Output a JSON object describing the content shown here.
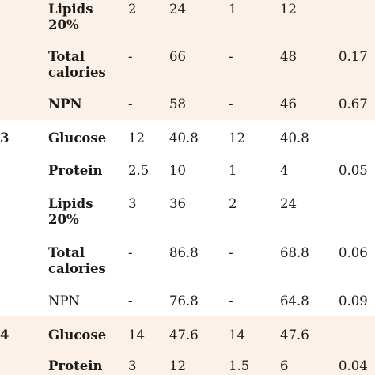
{
  "colors": {
    "band_peach": "#fcf1e8",
    "background": "#ffffff"
  },
  "rows": [
    {
      "group": "",
      "name1": "Lipids",
      "name2": "20%",
      "v1": "2",
      "v2": "24",
      "v3": "1",
      "v4": "12",
      "p": ""
    },
    {
      "group": "",
      "name1": "Total",
      "name2": "calories",
      "v1": "-",
      "v2": "66",
      "v3": "-",
      "v4": "48",
      "p": "0.17"
    },
    {
      "group": "",
      "name1": "NPN",
      "name2": "",
      "v1": "-",
      "v2": "58",
      "v3": "-",
      "v4": "46",
      "p": "0.67"
    },
    {
      "group": "3",
      "name1": "Glucose",
      "name2": "",
      "v1": "12",
      "v2": "40.8",
      "v3": "12",
      "v4": "40.8",
      "p": ""
    },
    {
      "group": "",
      "name1": "Protein",
      "name2": "",
      "v1": "2.5",
      "v2": "10",
      "v3": "1",
      "v4": "4",
      "p": "0.05"
    },
    {
      "group": "",
      "name1": "Lipids",
      "name2": "20%",
      "v1": "3",
      "v2": "36",
      "v3": "2",
      "v4": "24",
      "p": ""
    },
    {
      "group": "",
      "name1": "Total",
      "name2": "calories",
      "v1": "-",
      "v2": "86.8",
      "v3": "-",
      "v4": "68.8",
      "p": "0.06"
    },
    {
      "group": "",
      "name1": "NPN",
      "name2": "",
      "v1": "-",
      "v2": "76.8",
      "v3": "-",
      "v4": "64.8",
      "p": "0.09"
    },
    {
      "group": "4",
      "name1": "Glucose",
      "name2": "",
      "v1": "14",
      "v2": "47.6",
      "v3": "14",
      "v4": "47.6",
      "p": ""
    },
    {
      "group": "",
      "name1": "Protein",
      "name2": "",
      "v1": "3",
      "v2": "12",
      "v3": "1.5",
      "v4": "6",
      "p": "0.04"
    }
  ]
}
